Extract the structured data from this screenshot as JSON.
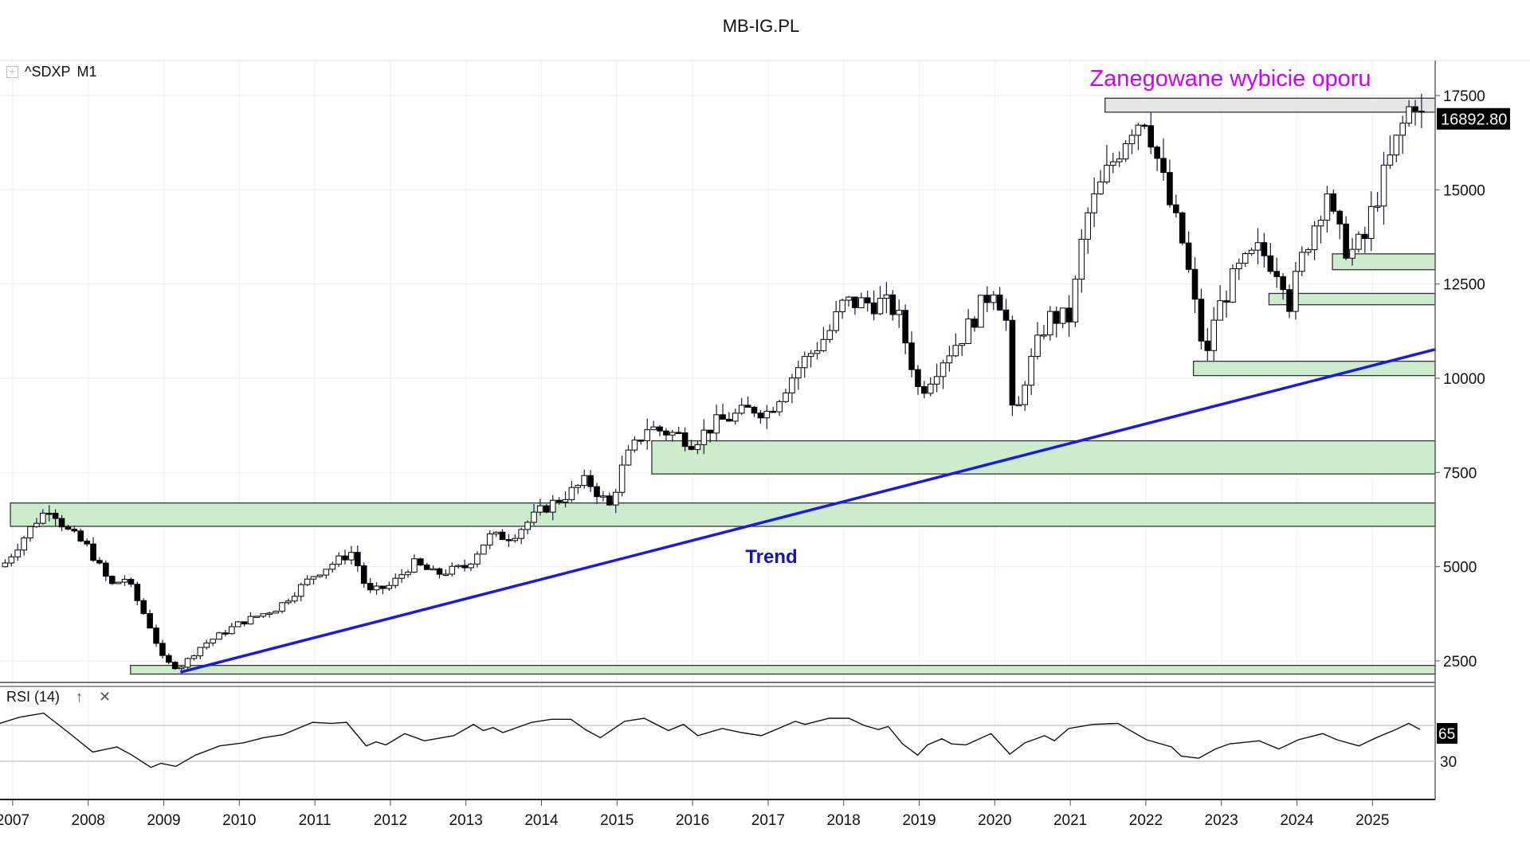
{
  "page_title": "MB-IG.PL",
  "instrument": {
    "symbol": "^SDXP",
    "interval": "M1"
  },
  "last_price_label": "16892.80",
  "annotations": {
    "resistance": "Zanegowane wybicie oporu",
    "trend": "Trend"
  },
  "colors": {
    "annotation_resistance": "#cc00ff",
    "trend_line": "#1a1ae6",
    "zone_fill": "#cdeccd",
    "zone_gray": "#e6e6e6"
  },
  "rsi_panel": {
    "label": "RSI (14)",
    "up_icon": "arrow-up-icon",
    "close_icon": "close-icon",
    "value_label": "65",
    "levels": [
      65,
      30
    ]
  },
  "chart_data": {
    "type": "candlestick",
    "title": "MB-IG.PL",
    "x_ticks": [
      "2007",
      "2008",
      "2009",
      "2010",
      "2011",
      "2012",
      "2013",
      "2014",
      "2015",
      "2016",
      "2017",
      "2018",
      "2019",
      "2020",
      "2021",
      "2022",
      "2023",
      "2024",
      "2025"
    ],
    "y_ticks": [
      2500,
      5000,
      7500,
      10000,
      12500,
      15000,
      17500
    ],
    "ylim": [
      1700,
      18700
    ],
    "last_price": 16892.8,
    "close_path": [
      [
        2006.9,
        5100
      ],
      [
        2007.3,
        6200
      ],
      [
        2007.5,
        6600
      ],
      [
        2007.7,
        6000
      ],
      [
        2008.0,
        5500
      ],
      [
        2008.3,
        4500
      ],
      [
        2008.5,
        4700
      ],
      [
        2008.8,
        3500
      ],
      [
        2009.0,
        2500
      ],
      [
        2009.2,
        2300
      ],
      [
        2009.5,
        2900
      ],
      [
        2010.0,
        3500
      ],
      [
        2010.5,
        3900
      ],
      [
        2011.0,
        4800
      ],
      [
        2011.5,
        5400
      ],
      [
        2011.7,
        4300
      ],
      [
        2012.0,
        4500
      ],
      [
        2012.3,
        5100
      ],
      [
        2012.6,
        4800
      ],
      [
        2013.0,
        5000
      ],
      [
        2013.3,
        5800
      ],
      [
        2013.6,
        5800
      ],
      [
        2014.0,
        6500
      ],
      [
        2014.4,
        7000
      ],
      [
        2014.6,
        7300
      ],
      [
        2014.9,
        6600
      ],
      [
        2015.1,
        7800
      ],
      [
        2015.4,
        8700
      ],
      [
        2015.8,
        8500
      ],
      [
        2016.0,
        8300
      ],
      [
        2016.3,
        8800
      ],
      [
        2016.8,
        9200
      ],
      [
        2017.0,
        9100
      ],
      [
        2017.4,
        10300
      ],
      [
        2017.8,
        11200
      ],
      [
        2018.0,
        12000
      ],
      [
        2018.5,
        12000
      ],
      [
        2018.7,
        11800
      ],
      [
        2018.9,
        10400
      ],
      [
        2019.0,
        9600
      ],
      [
        2019.3,
        10500
      ],
      [
        2019.6,
        11200
      ],
      [
        2020.0,
        12500
      ],
      [
        2020.15,
        11500
      ],
      [
        2020.25,
        8600
      ],
      [
        2020.4,
        10000
      ],
      [
        2020.7,
        11600
      ],
      [
        2021.0,
        11600
      ],
      [
        2021.2,
        14200
      ],
      [
        2021.5,
        15500
      ],
      [
        2021.8,
        16700
      ],
      [
        2022.0,
        17000
      ],
      [
        2022.1,
        16200
      ],
      [
        2022.3,
        14700
      ],
      [
        2022.5,
        13500
      ],
      [
        2022.7,
        11400
      ],
      [
        2022.8,
        10400
      ],
      [
        2022.9,
        11600
      ],
      [
        2023.2,
        12800
      ],
      [
        2023.5,
        13400
      ],
      [
        2023.8,
        12800
      ],
      [
        2023.9,
        12000
      ],
      [
        2024.1,
        13400
      ],
      [
        2024.4,
        15000
      ],
      [
        2024.5,
        14000
      ],
      [
        2024.7,
        13300
      ],
      [
        2024.9,
        13700
      ],
      [
        2025.0,
        14500
      ],
      [
        2025.2,
        15600
      ],
      [
        2025.4,
        16700
      ],
      [
        2025.55,
        17500
      ],
      [
        2025.65,
        16900
      ]
    ],
    "zones": [
      {
        "kind": "resistance",
        "start": 2021.46,
        "low": 17060,
        "high": 17430
      },
      {
        "kind": "support",
        "start": 2024.47,
        "low": 12880,
        "high": 13300
      },
      {
        "kind": "support",
        "start": 2023.63,
        "low": 11950,
        "high": 12250
      },
      {
        "kind": "support",
        "start": 2022.63,
        "low": 10070,
        "high": 10450
      },
      {
        "kind": "support",
        "start": 2015.46,
        "low": 7460,
        "high": 8340
      },
      {
        "kind": "support",
        "start": 2006.97,
        "low": 6070,
        "high": 6690
      },
      {
        "kind": "support",
        "start": 2008.56,
        "low": 2150,
        "high": 2380
      }
    ],
    "trend_line": [
      [
        2009.22,
        2200
      ],
      [
        2025.84,
        10770
      ]
    ],
    "rsi": [
      [
        2006.83,
        67
      ],
      [
        2007.09,
        73
      ],
      [
        2007.41,
        77
      ],
      [
        2007.74,
        58
      ],
      [
        2008.06,
        39
      ],
      [
        2008.38,
        44
      ],
      [
        2008.58,
        36
      ],
      [
        2008.83,
        24
      ],
      [
        2008.96,
        28
      ],
      [
        2009.16,
        25
      ],
      [
        2009.42,
        36
      ],
      [
        2009.74,
        45
      ],
      [
        2010.06,
        48
      ],
      [
        2010.32,
        53
      ],
      [
        2010.58,
        56
      ],
      [
        2010.97,
        68
      ],
      [
        2011.22,
        67
      ],
      [
        2011.42,
        68
      ],
      [
        2011.68,
        45
      ],
      [
        2011.81,
        49
      ],
      [
        2011.94,
        46
      ],
      [
        2012.19,
        57
      ],
      [
        2012.45,
        50
      ],
      [
        2012.84,
        55
      ],
      [
        2013.1,
        66
      ],
      [
        2013.23,
        60
      ],
      [
        2013.36,
        63
      ],
      [
        2013.49,
        58
      ],
      [
        2013.87,
        68
      ],
      [
        2014.13,
        71
      ],
      [
        2014.39,
        71
      ],
      [
        2014.58,
        61
      ],
      [
        2014.78,
        53
      ],
      [
        2015.1,
        69
      ],
      [
        2015.36,
        72
      ],
      [
        2015.68,
        60
      ],
      [
        2015.88,
        66
      ],
      [
        2016.07,
        55
      ],
      [
        2016.39,
        62
      ],
      [
        2016.65,
        58
      ],
      [
        2016.91,
        55
      ],
      [
        2017.36,
        69
      ],
      [
        2017.49,
        66
      ],
      [
        2017.81,
        72
      ],
      [
        2018.07,
        72
      ],
      [
        2018.27,
        65
      ],
      [
        2018.46,
        61
      ],
      [
        2018.59,
        64
      ],
      [
        2018.78,
        47
      ],
      [
        2018.98,
        36
      ],
      [
        2019.11,
        46
      ],
      [
        2019.3,
        52
      ],
      [
        2019.43,
        47
      ],
      [
        2019.62,
        46
      ],
      [
        2019.95,
        57
      ],
      [
        2020.2,
        37
      ],
      [
        2020.4,
        48
      ],
      [
        2020.66,
        55
      ],
      [
        2020.79,
        50
      ],
      [
        2020.98,
        62
      ],
      [
        2021.3,
        66
      ],
      [
        2021.63,
        67
      ],
      [
        2021.82,
        59
      ],
      [
        2022.01,
        51
      ],
      [
        2022.34,
        44
      ],
      [
        2022.47,
        35
      ],
      [
        2022.7,
        33
      ],
      [
        2022.92,
        42
      ],
      [
        2023.11,
        47
      ],
      [
        2023.5,
        50
      ],
      [
        2023.76,
        42
      ],
      [
        2024.02,
        51
      ],
      [
        2024.34,
        57
      ],
      [
        2024.53,
        51
      ],
      [
        2024.82,
        45
      ],
      [
        2025.05,
        53
      ],
      [
        2025.31,
        61
      ],
      [
        2025.48,
        67
      ],
      [
        2025.63,
        61
      ]
    ]
  }
}
